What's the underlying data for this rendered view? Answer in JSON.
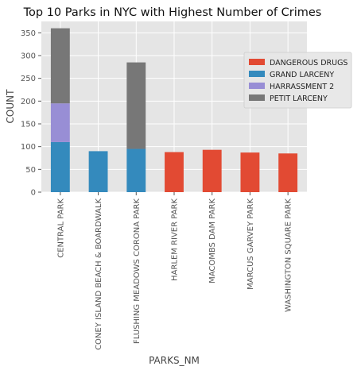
{
  "chart_data": {
    "type": "bar",
    "stacked": true,
    "title": "Top 10 Parks in NYC with Highest Number of Crimes",
    "xlabel": "PARKS_NM",
    "ylabel": "COUNT",
    "ylim": [
      0,
      375
    ],
    "yticks": [
      0,
      50,
      100,
      150,
      200,
      250,
      300,
      350
    ],
    "grid": true,
    "legend_position": "right",
    "categories": [
      "CENTRAL PARK",
      "CONEY ISLAND BEACH & BOARDWALK",
      "FLUSHING MEADOWS CORONA PARK",
      "HARLEM RIVER PARK",
      "MACOMBS DAM PARK",
      "MARCUS GARVEY PARK",
      "WASHINGTON SQUARE PARK"
    ],
    "series": [
      {
        "name": "DANGEROUS DRUGS",
        "color": "#E24A33",
        "values": [
          0,
          0,
          0,
          88,
          93,
          87,
          85
        ]
      },
      {
        "name": "GRAND LARCENY",
        "color": "#348ABD",
        "values": [
          110,
          90,
          95,
          0,
          0,
          0,
          0
        ]
      },
      {
        "name": "HARRASSMENT 2",
        "color": "#988ED5",
        "values": [
          85,
          0,
          0,
          0,
          0,
          0,
          0
        ]
      },
      {
        "name": "PETIT LARCENY",
        "color": "#777777",
        "values": [
          165,
          0,
          190,
          0,
          0,
          0,
          0
        ]
      }
    ]
  }
}
